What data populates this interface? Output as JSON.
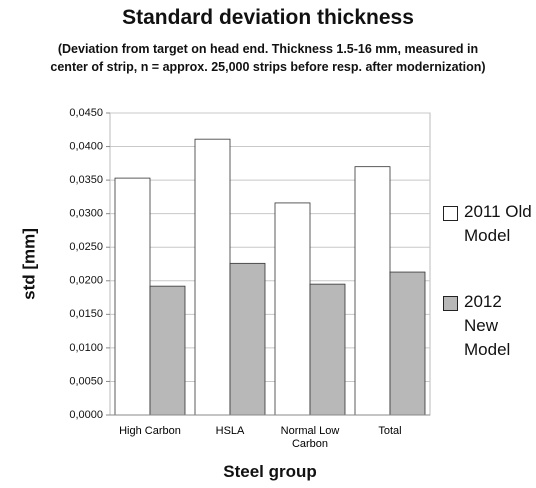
{
  "chart_data": {
    "type": "bar",
    "title": "Standard deviation thickness",
    "subtitle": "(Deviation from target on head end.  Thickness 1.5-16 mm, measured in center of strip, n = approx. 25,000 strips before resp. after modernization)",
    "x_label": "Steel group",
    "y_label": "std [mm]",
    "categories": [
      "High Carbon",
      "HSLA",
      "Normal Low Carbon",
      "Total"
    ],
    "series": [
      {
        "name": "2011 Old Model",
        "color": "#ffffff",
        "values": [
          0.0353,
          0.0411,
          0.0316,
          0.037
        ]
      },
      {
        "name": "2012 New Model",
        "color": "#b8b8b8",
        "values": [
          0.0192,
          0.0226,
          0.0195,
          0.0213
        ]
      }
    ],
    "ylim": [
      0,
      0.045
    ],
    "yticks": [
      {
        "value": 0,
        "label": "0,0000"
      },
      {
        "value": 0.005,
        "label": "0,0050"
      },
      {
        "value": 0.01,
        "label": "0,0100"
      },
      {
        "value": 0.015,
        "label": "0,0150"
      },
      {
        "value": 0.02,
        "label": "0,0200"
      },
      {
        "value": 0.025,
        "label": "0,0250"
      },
      {
        "value": 0.03,
        "label": "0,0300"
      },
      {
        "value": 0.035,
        "label": "0,0350"
      },
      {
        "value": 0.04,
        "label": "0,0400"
      },
      {
        "value": 0.045,
        "label": "0,0450"
      }
    ],
    "grid": true,
    "legend": "right"
  }
}
